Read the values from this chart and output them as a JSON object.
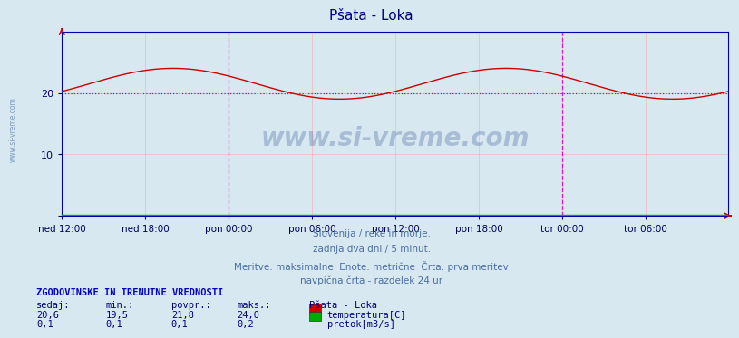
{
  "title": "Pšata - Loka",
  "title_color": "#000080",
  "bg_color": "#d8e8f0",
  "plot_bg_color": "#d8e8f0",
  "y_min": 0,
  "y_max": 30,
  "y_ticks": [
    0,
    10,
    20
  ],
  "x_labels": [
    "ned 12:00",
    "ned 18:00",
    "pon 00:00",
    "pon 06:00",
    "pon 12:00",
    "pon 18:00",
    "tor 00:00",
    "tor 06:00"
  ],
  "x_ticks_pos": [
    0,
    72,
    144,
    216,
    288,
    360,
    432,
    504
  ],
  "total_points": 576,
  "temp_color": "#cc0000",
  "flow_color": "#00aa00",
  "avg_line_color": "#cc0000",
  "avg_line_value": 20.0,
  "vertical_line_color": "#dd00dd",
  "vert_line_24h": [
    144,
    432
  ],
  "grid_color": "#ff9999",
  "grid_alpha": 0.6,
  "watermark": "www.si-vreme.com",
  "watermark_color": "#4a6fa5",
  "watermark_alpha": 0.35,
  "sub_text1": "Slovenija / reke in morje.",
  "sub_text2": "zadnja dva dni / 5 minut.",
  "sub_text3": "Meritve: maksimalne  Enote: metrične  Črta: prva meritev",
  "sub_text4": "navpična črta - razdelek 24 ur",
  "sub_text_color": "#4a6fa5",
  "table_header": "ZGODOVINSKE IN TRENUTNE VREDNOSTI",
  "table_header_color": "#0000cc",
  "col_headers": [
    "sedaj:",
    "min.:",
    "povpr.:",
    "maks.:"
  ],
  "col_header_color": "#000080",
  "temp_row": [
    "20,6",
    "19,5",
    "21,8",
    "24,0"
  ],
  "flow_row": [
    "0,1",
    "0,1",
    "0,1",
    "0,2"
  ],
  "station_label": "Pšata - Loka",
  "temp_label": "temperatura[C]",
  "flow_label": "pretok[m3/s]",
  "label_color": "#000080",
  "value_color": "#000080",
  "sidebar_text": "www.si-vreme.com",
  "sidebar_color": "#4a6fa5"
}
